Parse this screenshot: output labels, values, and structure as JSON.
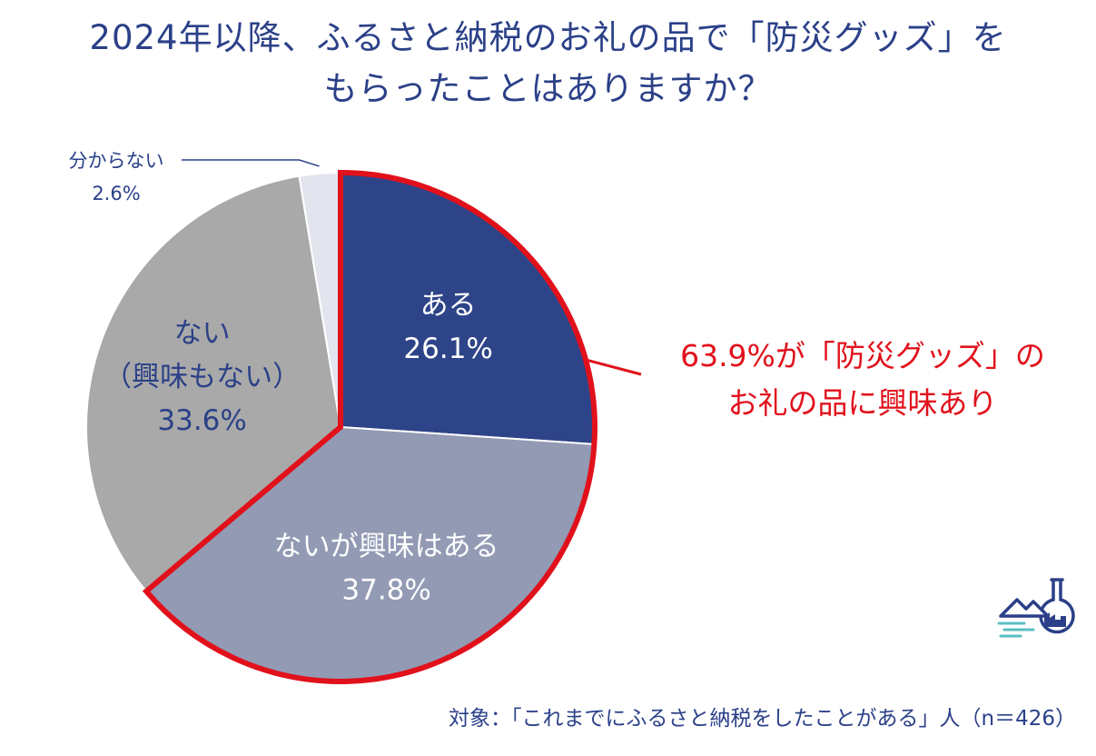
{
  "title": {
    "line1": "2024年以降、ふるさと納税のお礼の品で「防災グッズ」を",
    "line2": "もらったことはありますか？"
  },
  "footnote": "対象：「これまでにふるさと納税をしたことがある」人（n＝426）",
  "callout": {
    "line1": "63.9%が「防災グッズ」の",
    "line2": "お礼の品に興味あり"
  },
  "logo_icon": "flask-mountain-logo-icon",
  "colors": {
    "title": "#2b4088",
    "highlight": "#e1111b",
    "slice_aru": "#2e4489",
    "slice_nai_kyomi": "#929ab4",
    "slice_nai": "#a9a9a9",
    "slice_wakaranai": "#e3e5ee"
  },
  "chart_data": {
    "type": "pie",
    "start": "12 o'clock, clockwise",
    "slices": [
      {
        "label": "ある",
        "value": 26.1,
        "value_text": "26.1%",
        "color": "#2e4489",
        "text_color": "#ffffff"
      },
      {
        "label": "ないが興味はある",
        "value": 37.8,
        "value_text": "37.8%",
        "color": "#929ab4",
        "text_color": "#ffffff"
      },
      {
        "label": "ない\n（興味もない）",
        "value": 33.6,
        "value_text": "33.6%",
        "color": "#a9a9a9",
        "text_color": "#2b4088"
      },
      {
        "label": "分からない",
        "value": 2.6,
        "value_text": "2.6%",
        "color": "#e3e5ee",
        "text_color": "#2b4088",
        "external": true
      }
    ],
    "highlighted_slices": [
      "ある",
      "ないが興味はある"
    ],
    "highlight_total": 63.9
  }
}
